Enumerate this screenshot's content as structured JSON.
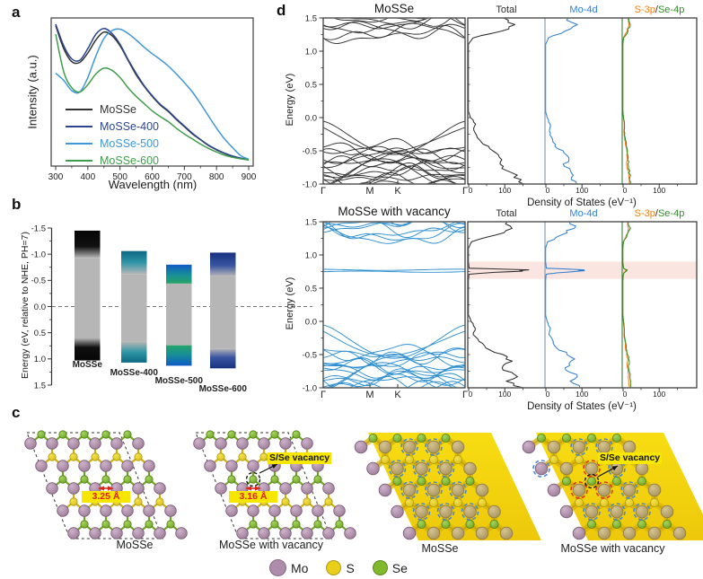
{
  "figure": {
    "panel_labels": {
      "a": "a",
      "b": "b",
      "c": "c",
      "d": "d"
    }
  },
  "chart_data": [
    {
      "id": "a",
      "type": "line",
      "xlabel": "Wavelength (nm)",
      "ylabel": "Intensity (a.u.)",
      "xlim": [
        300,
        900
      ],
      "xticks": [
        300,
        400,
        500,
        600,
        700,
        800,
        900
      ],
      "grid": false,
      "legend_position": "inside-left-bottom",
      "x": [
        300,
        325,
        350,
        375,
        400,
        425,
        450,
        475,
        500,
        525,
        550,
        575,
        600,
        625,
        650,
        675,
        700,
        725,
        750,
        775,
        800,
        825,
        850,
        875,
        900
      ],
      "series": [
        {
          "name": "MoSSe",
          "color": "#333333",
          "values": [
            0.96,
            0.8,
            0.71,
            0.705,
            0.77,
            0.86,
            0.915,
            0.89,
            0.82,
            0.72,
            0.62,
            0.54,
            0.47,
            0.41,
            0.365,
            0.31,
            0.26,
            0.21,
            0.17,
            0.13,
            0.1,
            0.075,
            0.055,
            0.042,
            0.03
          ]
        },
        {
          "name": "MoSSe-400",
          "color": "#2b4590",
          "values": [
            0.97,
            0.82,
            0.73,
            0.72,
            0.8,
            0.9,
            0.94,
            0.905,
            0.83,
            0.725,
            0.63,
            0.545,
            0.475,
            0.415,
            0.37,
            0.315,
            0.265,
            0.215,
            0.172,
            0.133,
            0.102,
            0.077,
            0.057,
            0.043,
            0.03
          ]
        },
        {
          "name": "MoSSe-500",
          "color": "#3e97d8",
          "values": [
            0.63,
            0.58,
            0.51,
            0.5,
            0.6,
            0.75,
            0.87,
            0.925,
            0.935,
            0.905,
            0.86,
            0.81,
            0.765,
            0.725,
            0.68,
            0.625,
            0.565,
            0.5,
            0.42,
            0.335,
            0.25,
            0.175,
            0.115,
            0.06,
            0.035
          ]
        },
        {
          "name": "MoSSe-600",
          "color": "#3f9d4b",
          "values": [
            0.9,
            0.64,
            0.53,
            0.5,
            0.55,
            0.625,
            0.665,
            0.65,
            0.6,
            0.53,
            0.47,
            0.42,
            0.37,
            0.33,
            0.295,
            0.25,
            0.21,
            0.175,
            0.14,
            0.11,
            0.085,
            0.063,
            0.048,
            0.038,
            0.03
          ]
        }
      ]
    },
    {
      "id": "b",
      "type": "band-alignment",
      "ylabel": "Energy (eV, relative to NHE, PH=7)",
      "ylim": [
        -1.5,
        1.5
      ],
      "yticks": [
        -1.5,
        -1.0,
        -0.5,
        0.0,
        0.5,
        1.0,
        1.5
      ],
      "zero_line": 0.0,
      "gap_color": "#b6b6b6",
      "bars": [
        {
          "label": "MoSSe",
          "cb": [
            -1.45,
            -0.93
          ],
          "vb": [
            0.6,
            1.03
          ],
          "edge_color": "#060606"
        },
        {
          "label": "MoSSe-400",
          "cb": [
            -1.06,
            -0.62
          ],
          "vb": [
            0.67,
            1.07
          ],
          "edge_color": "#0d6982"
        },
        {
          "label": "MoSSe-500",
          "cb": [
            -0.8,
            -0.44
          ],
          "vb": [
            0.74,
            1.13
          ],
          "edge_color": "#0f5ac6"
        },
        {
          "label": "MoSSe-600",
          "cb": [
            -1.03,
            -0.58
          ],
          "vb": [
            0.8,
            1.18
          ],
          "edge_color": "#17327f"
        }
      ]
    },
    {
      "id": "d-top",
      "type": "bands+dos",
      "title": "MoSSe",
      "band_color": "#333333",
      "ylabel": "Energy (eV)",
      "ylim": [
        -1.0,
        1.5
      ],
      "yticks": [
        1.5,
        1.0,
        0.5,
        0.0,
        -0.5,
        -1.0
      ],
      "kpath": [
        "Γ",
        "M",
        "K",
        "Γ"
      ],
      "conduction_range": [
        1.24,
        1.62
      ],
      "valence_range": [
        -1.06,
        -0.42
      ],
      "valence_frontier": -0.06,
      "dos_xlabel": "Density of States (eV⁻¹)",
      "dos_xticks": [
        0,
        100
      ],
      "dos_headers": [
        {
          "text": "Total",
          "color": "#2e2e2e"
        },
        {
          "text": "Mo-4d",
          "color": "#2f7fd0"
        },
        {
          "parts": [
            {
              "text": "S-3p",
              "color": "#f07f16"
            },
            {
              "text": "/",
              "color": "#2e2e2e"
            },
            {
              "text": "Se-4p",
              "color": "#2f8f25"
            }
          ]
        }
      ],
      "dos": {
        "energies": [
          1.5,
          1.4,
          1.3,
          1.2,
          1.1,
          1.0,
          0.9,
          0.8,
          0.7,
          0.6,
          0.5,
          0.4,
          0.3,
          0.2,
          0.1,
          0.0,
          -0.1,
          -0.2,
          -0.3,
          -0.4,
          -0.5,
          -0.6,
          -0.7,
          -0.8,
          -0.9,
          -1.0
        ],
        "total": [
          95,
          130,
          85,
          12,
          0,
          0,
          0,
          0,
          0,
          0,
          0,
          0,
          0,
          0,
          0,
          6,
          20,
          15,
          26,
          38,
          66,
          92,
          80,
          112,
          128,
          148
        ],
        "mo4d": [
          60,
          85,
          55,
          8,
          0,
          0,
          0,
          0,
          0,
          0,
          0,
          0,
          0,
          0,
          0,
          4,
          13,
          10,
          17,
          25,
          44,
          60,
          52,
          70,
          78,
          88
        ],
        "s3p_se4p": [
          16,
          22,
          14,
          2,
          0,
          0,
          0,
          0,
          0,
          0,
          0,
          0,
          0,
          0,
          0,
          2,
          5,
          4,
          6,
          9,
          13,
          16,
          14,
          18,
          20,
          22
        ]
      },
      "midgap": null,
      "highlight": null
    },
    {
      "id": "d-bottom",
      "type": "bands+dos",
      "title": "MoSSe with vacancy",
      "band_color": "#2e8fd0",
      "ylabel": "Energy (eV)",
      "ylim": [
        -1.0,
        1.5
      ],
      "yticks": [
        1.5,
        1.0,
        0.5,
        0.0,
        -0.5,
        -1.0
      ],
      "kpath": [
        "Γ",
        "M",
        "K",
        "Γ"
      ],
      "conduction_range": [
        1.26,
        1.62
      ],
      "valence_range": [
        -1.06,
        -0.42
      ],
      "valence_frontier": -0.06,
      "flat_bands": [
        0.748,
        0.776
      ],
      "dos_xlabel": "Density of States (eV⁻¹)",
      "dos_xticks": [
        0,
        100
      ],
      "dos_headers": [
        {
          "text": "Total",
          "color": "#2e2e2e"
        },
        {
          "text": "Mo-4d",
          "color": "#2f7fd0"
        },
        {
          "parts": [
            {
              "text": "S-3p",
              "color": "#f07f16"
            },
            {
              "text": "/",
              "color": "#2e2e2e"
            },
            {
              "text": "Se-4p",
              "color": "#2f8f25"
            }
          ]
        }
      ],
      "dos": {
        "energies": [
          1.5,
          1.4,
          1.3,
          1.2,
          1.1,
          1.0,
          0.9,
          0.8,
          0.7,
          0.6,
          0.5,
          0.4,
          0.3,
          0.2,
          0.1,
          0.0,
          -0.1,
          -0.2,
          -0.3,
          -0.4,
          -0.5,
          -0.6,
          -0.7,
          -0.8,
          -0.9,
          -1.0
        ],
        "total": [
          100,
          125,
          70,
          10,
          0,
          0,
          0,
          0,
          0,
          0,
          0,
          0,
          0,
          0,
          0,
          7,
          18,
          14,
          30,
          45,
          95,
          120,
          90,
          130,
          110,
          150
        ],
        "mo4d": [
          65,
          80,
          45,
          6,
          0,
          0,
          0,
          0,
          0,
          0,
          0,
          0,
          0,
          0,
          0,
          4,
          12,
          9,
          20,
          28,
          60,
          75,
          55,
          80,
          70,
          90
        ],
        "s3p_se4p": [
          15,
          20,
          12,
          2,
          0,
          0,
          0,
          0,
          0,
          0,
          0,
          0,
          0,
          0,
          0,
          2,
          4,
          4,
          7,
          10,
          14,
          17,
          15,
          19,
          20,
          22
        ]
      },
      "midgap": {
        "energy": 0.765,
        "total": 165,
        "mo4d": 105,
        "s3p_se4p": 12
      },
      "highlight": {
        "range": [
          0.64,
          0.9
        ],
        "color": "#fbe5e1"
      }
    }
  ],
  "structures": {
    "items": [
      {
        "label": "MoSSe",
        "style": "ball-stick",
        "distance_label": "3.25 Å"
      },
      {
        "label": "MoSSe with vacancy",
        "style": "ball-stick",
        "distance_label": "3.16 Å",
        "vacancy_label": "S/Se vacancy"
      },
      {
        "label": "MoSSe",
        "style": "charge-density"
      },
      {
        "label": "MoSSe with vacancy",
        "style": "charge-density",
        "vacancy_label": "S/Se vacancy"
      }
    ],
    "legend": [
      {
        "name": "Mo",
        "color": "#ad8dab"
      },
      {
        "name": "S",
        "color": "#e9ce1a"
      },
      {
        "name": "Se",
        "color": "#80b92c"
      }
    ],
    "colors": {
      "iso_surface": "#f4d60f",
      "annotation_bg": "#f6e600",
      "distance_text": "#dd2414"
    }
  }
}
